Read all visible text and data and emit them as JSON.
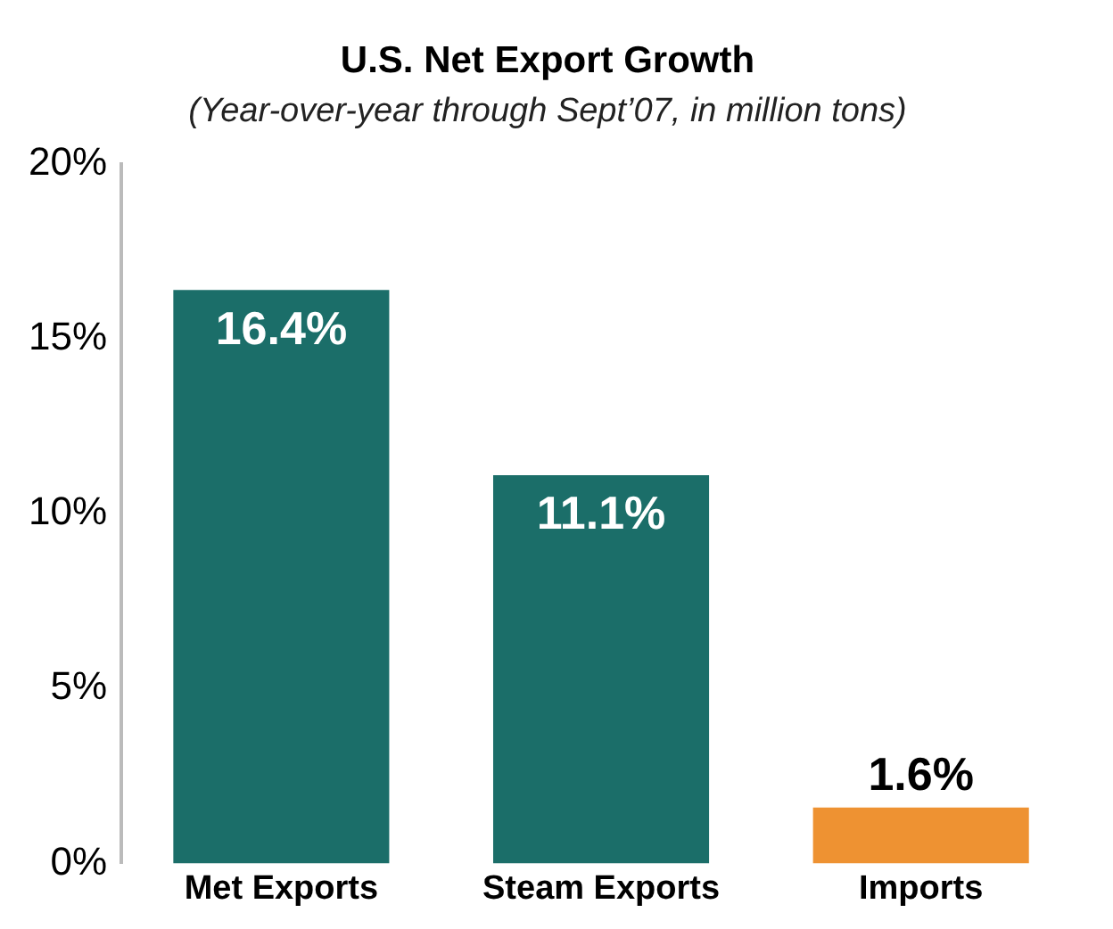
{
  "chart_data": {
    "type": "bar",
    "title": "U.S. Net Export Growth",
    "subtitle": "(Year-over-year through Sept’07, in million tons)",
    "categories": [
      "Met Exports",
      "Steam Exports",
      "Imports"
    ],
    "values": [
      16.4,
      11.1,
      1.6
    ],
    "colors": [
      "#1b6e69",
      "#1b6e69",
      "#ee9232"
    ],
    "value_labels": [
      "16.4%",
      "11.1%",
      "1.6%"
    ],
    "ylim": [
      0,
      20
    ],
    "yticks": [
      {
        "value": 0,
        "label": "0%"
      },
      {
        "value": 5,
        "label": "5%"
      },
      {
        "value": 10,
        "label": "10%"
      },
      {
        "value": 15,
        "label": "15%"
      },
      {
        "value": 20,
        "label": "20%"
      }
    ],
    "grid": false,
    "legend": false
  }
}
